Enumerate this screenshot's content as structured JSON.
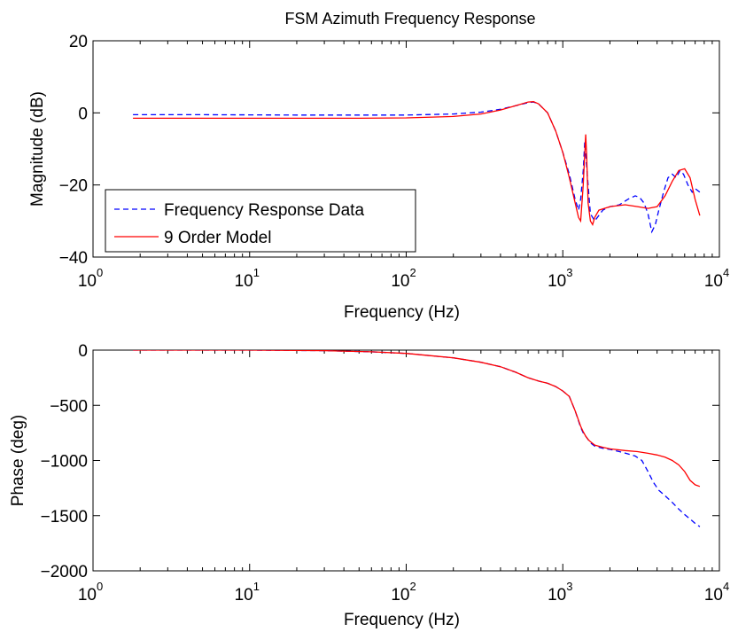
{
  "figure_title": "FSM Azimuth Frequency Response",
  "colors": {
    "data_series": "#0000ff",
    "model_series": "#ff0000",
    "axes": "#000000",
    "background": "#ffffff"
  },
  "chart_data": [
    {
      "type": "line",
      "title": "FSM Azimuth Frequency Response",
      "xlabel": "Frequency (Hz)",
      "ylabel": "Magnitude (dB)",
      "xscale": "log",
      "xlim": [
        1,
        10000
      ],
      "ylim": [
        -40,
        20
      ],
      "x_ticks": [
        {
          "base": "10",
          "exp": "0",
          "value": 1
        },
        {
          "base": "10",
          "exp": "1",
          "value": 10
        },
        {
          "base": "10",
          "exp": "2",
          "value": 100
        },
        {
          "base": "10",
          "exp": "3",
          "value": 1000
        },
        {
          "base": "10",
          "exp": "4",
          "value": 10000
        }
      ],
      "y_ticks": [
        {
          "label": "20",
          "value": 20
        },
        {
          "label": "0",
          "value": 0
        },
        {
          "label": "−20",
          "value": -20
        },
        {
          "label": "−40",
          "value": -40
        }
      ],
      "grid": false,
      "legend_position": "bottom-left",
      "series": [
        {
          "name": "Frequency Response Data",
          "color": "#0000ff",
          "style": "dashed",
          "x": [
            1.8,
            5,
            20,
            100,
            200,
            300,
            400,
            500,
            600,
            650,
            700,
            800,
            900,
            1000,
            1100,
            1200,
            1260,
            1300,
            1350,
            1380,
            1420,
            1500,
            1600,
            1800,
            2000,
            2300,
            2600,
            2900,
            3100,
            3300,
            3500,
            3700,
            3900,
            4100,
            4400,
            4700,
            5000,
            5300,
            5600,
            5900,
            6300,
            6700,
            7000,
            7500
          ],
          "y": [
            -0.5,
            -0.5,
            -0.6,
            -0.6,
            -0.3,
            0.2,
            1.0,
            2.0,
            2.8,
            3.0,
            2.5,
            0,
            -5,
            -11,
            -17,
            -24,
            -27,
            -24,
            -16,
            -8,
            -15,
            -28,
            -30,
            -27,
            -26,
            -25.5,
            -24,
            -23,
            -23.5,
            -25,
            -28,
            -33,
            -31,
            -27,
            -22,
            -18,
            -17,
            -18,
            -16,
            -17,
            -20,
            -22,
            -21,
            -22
          ]
        },
        {
          "name": "9 Order Model",
          "color": "#ff0000",
          "style": "solid",
          "x": [
            1.8,
            10,
            50,
            100,
            200,
            300,
            400,
            500,
            600,
            650,
            700,
            800,
            900,
            1000,
            1100,
            1200,
            1260,
            1300,
            1350,
            1400,
            1420,
            1450,
            1500,
            1550,
            1600,
            1700,
            2000,
            2500,
            3000,
            3500,
            4000,
            4500,
            5000,
            5500,
            6000,
            6500,
            7000,
            7500
          ],
          "y": [
            -1.5,
            -1.5,
            -1.5,
            -1.4,
            -1.0,
            -0.3,
            0.8,
            2.0,
            3.0,
            3.1,
            2.5,
            0,
            -5,
            -11,
            -18,
            -25,
            -29,
            -30,
            -20,
            -6,
            -12,
            -25,
            -30,
            -31,
            -29,
            -27,
            -26,
            -25.5,
            -26,
            -26.5,
            -26,
            -23,
            -19,
            -16,
            -15.5,
            -18,
            -24,
            -28.5
          ]
        }
      ]
    },
    {
      "type": "line",
      "xlabel": "Frequency (Hz)",
      "ylabel": "Phase (deg)",
      "xscale": "log",
      "xlim": [
        1,
        10000
      ],
      "ylim": [
        -2000,
        0
      ],
      "x_ticks": [
        {
          "base": "10",
          "exp": "0",
          "value": 1
        },
        {
          "base": "10",
          "exp": "1",
          "value": 10
        },
        {
          "base": "10",
          "exp": "2",
          "value": 100
        },
        {
          "base": "10",
          "exp": "3",
          "value": 1000
        },
        {
          "base": "10",
          "exp": "4",
          "value": 10000
        }
      ],
      "y_ticks": [
        {
          "label": "0",
          "value": 0
        },
        {
          "label": "−500",
          "value": -500
        },
        {
          "label": "−1000",
          "value": -1000
        },
        {
          "label": "−1500",
          "value": -1500
        },
        {
          "label": "−2000",
          "value": -2000
        }
      ],
      "grid": false,
      "series": [
        {
          "name": "Frequency Response Data",
          "color": "#0000ff",
          "style": "dashed",
          "x": [
            1.8,
            10,
            30,
            60,
            100,
            200,
            300,
            400,
            500,
            600,
            700,
            800,
            900,
            1000,
            1100,
            1200,
            1300,
            1350,
            1400,
            1450,
            1500,
            1600,
            1800,
            2000,
            2300,
            2600,
            2900,
            3200,
            3500,
            3800,
            4100,
            4500,
            5000,
            5500,
            6000,
            6500,
            7000,
            7500
          ],
          "y": [
            0,
            0,
            -5,
            -15,
            -30,
            -70,
            -110,
            -150,
            -200,
            -250,
            -280,
            -300,
            -330,
            -370,
            -420,
            -550,
            -700,
            -750,
            -780,
            -810,
            -840,
            -870,
            -890,
            -900,
            -920,
            -940,
            -960,
            -1000,
            -1100,
            -1200,
            -1270,
            -1320,
            -1380,
            -1440,
            -1490,
            -1530,
            -1570,
            -1600
          ]
        },
        {
          "name": "9 Order Model",
          "color": "#ff0000",
          "style": "solid",
          "x": [
            1.8,
            10,
            30,
            60,
            100,
            200,
            300,
            400,
            500,
            600,
            700,
            800,
            900,
            1000,
            1100,
            1200,
            1300,
            1350,
            1400,
            1450,
            1500,
            1600,
            1800,
            2000,
            2500,
            3000,
            3500,
            4000,
            4500,
            5000,
            5500,
            6000,
            6500,
            7000,
            7500
          ],
          "y": [
            0,
            0,
            -5,
            -15,
            -30,
            -70,
            -110,
            -150,
            -200,
            -250,
            -280,
            -300,
            -330,
            -370,
            -420,
            -550,
            -690,
            -740,
            -780,
            -810,
            -830,
            -860,
            -880,
            -895,
            -910,
            -920,
            -935,
            -950,
            -970,
            -1000,
            -1040,
            -1100,
            -1180,
            -1220,
            -1235
          ]
        }
      ]
    }
  ]
}
